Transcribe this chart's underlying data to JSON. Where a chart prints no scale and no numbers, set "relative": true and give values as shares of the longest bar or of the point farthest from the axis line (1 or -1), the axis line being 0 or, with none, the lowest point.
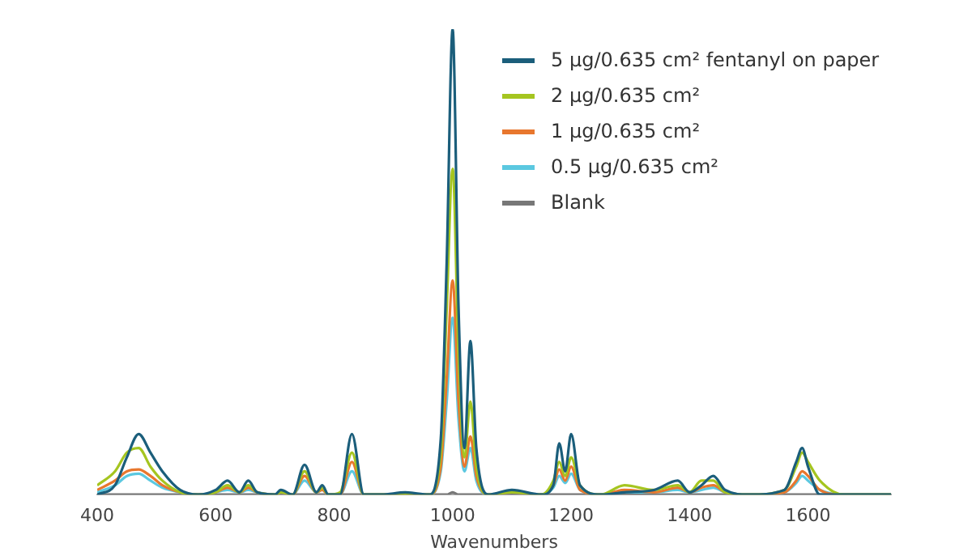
{
  "chart_data": {
    "type": "line",
    "relative": true,
    "xlabel": "Wavenumbers",
    "xlim": [
      400,
      1740
    ],
    "xticks": [
      400,
      600,
      800,
      1000,
      1200,
      1400,
      1600
    ],
    "grid": false,
    "legend": "top right",
    "marker": "none",
    "line_style": "solid",
    "x": [
      400,
      430,
      450,
      470,
      490,
      510,
      540,
      570,
      600,
      620,
      640,
      655,
      670,
      700,
      710,
      730,
      750,
      770,
      780,
      790,
      810,
      830,
      850,
      880,
      920,
      960,
      980,
      990,
      1000,
      1010,
      1020,
      1030,
      1040,
      1060,
      1100,
      1150,
      1170,
      1180,
      1190,
      1200,
      1215,
      1250,
      1290,
      1340,
      1380,
      1400,
      1420,
      1440,
      1460,
      1500,
      1560,
      1580,
      1590,
      1600,
      1620,
      1660,
      1740
    ],
    "series": [
      {
        "name": "5 µg/0.635 cm² fentanyl on paper",
        "color": "#1b5e7b",
        "values": [
          0,
          0.02,
          0.08,
          0.13,
          0.09,
          0.05,
          0.01,
          0,
          0.01,
          0.03,
          0.005,
          0.03,
          0.005,
          0,
          0.01,
          0,
          0.064,
          0.005,
          0.02,
          0,
          0,
          0.13,
          0,
          0,
          0.005,
          0,
          0.12,
          0.5,
          1,
          0.4,
          0.1,
          0.33,
          0.1,
          0,
          0.01,
          0,
          0.02,
          0.11,
          0.05,
          0.13,
          0.02,
          0,
          0.005,
          0.01,
          0.03,
          0.005,
          0.02,
          0.04,
          0.01,
          0,
          0.01,
          0.07,
          0.1,
          0.06,
          0,
          0,
          0
        ]
      },
      {
        "name": "2 µg/0.635 cm²",
        "color": "#a5c520",
        "values": [
          0.02,
          0.05,
          0.09,
          0.1,
          0.06,
          0.03,
          0.005,
          0,
          0.005,
          0.02,
          0.005,
          0.02,
          0.005,
          0,
          0.005,
          0,
          0.05,
          0.005,
          0.015,
          0,
          0.005,
          0.09,
          0,
          0,
          0,
          0,
          0.09,
          0.4,
          0.7,
          0.3,
          0.08,
          0.2,
          0.06,
          0,
          0.005,
          0,
          0.03,
          0.07,
          0.04,
          0.08,
          0.02,
          0,
          0.02,
          0.01,
          0.02,
          0.005,
          0.03,
          0.03,
          0.005,
          0,
          0.01,
          0.06,
          0.09,
          0.07,
          0.03,
          0,
          0
        ]
      },
      {
        "name": "1 µg/0.635 cm²",
        "color": "#e8772e",
        "values": [
          0.01,
          0.03,
          0.05,
          0.054,
          0.04,
          0.02,
          0.005,
          0,
          0.005,
          0.015,
          0.005,
          0.015,
          0.005,
          0,
          0.005,
          0,
          0.04,
          0.005,
          0.01,
          0,
          0,
          0.07,
          0,
          0,
          0,
          0,
          0.06,
          0.25,
          0.46,
          0.2,
          0.06,
          0.125,
          0.04,
          0,
          0.005,
          0,
          0.02,
          0.054,
          0.03,
          0.06,
          0.01,
          0,
          0.01,
          0.005,
          0.015,
          0.005,
          0.015,
          0.02,
          0.005,
          0,
          0.005,
          0.03,
          0.05,
          0.04,
          0.01,
          0,
          0
        ]
      },
      {
        "name": "0.5 µg/0.635 cm²",
        "color": "#5bc8e0",
        "values": [
          0.005,
          0.02,
          0.04,
          0.045,
          0.03,
          0.015,
          0.005,
          0,
          0.005,
          0.01,
          0.005,
          0.01,
          0.005,
          0,
          0.005,
          0,
          0.03,
          0.005,
          0.01,
          0,
          0,
          0.05,
          0,
          0,
          0,
          0,
          0.05,
          0.2,
          0.38,
          0.16,
          0.05,
          0.1,
          0.03,
          0,
          0.005,
          0,
          0.015,
          0.04,
          0.025,
          0.045,
          0.01,
          0,
          0.005,
          0.005,
          0.01,
          0.005,
          0.01,
          0.015,
          0.005,
          0,
          0.005,
          0.025,
          0.04,
          0.03,
          0.01,
          0,
          0
        ]
      },
      {
        "name": "Blank",
        "color": "#777777",
        "values": [
          0,
          0,
          0,
          0,
          0,
          0,
          0,
          0,
          0,
          0,
          0,
          0,
          0,
          0,
          0,
          0,
          0,
          0,
          0,
          0,
          0,
          0,
          0,
          0,
          0,
          0,
          0,
          0,
          0.005,
          0,
          0,
          0,
          0,
          0,
          0,
          0,
          0,
          0,
          0,
          0,
          0,
          0,
          0,
          0,
          0,
          0,
          0,
          0,
          0,
          0,
          0,
          0,
          0,
          0,
          0,
          0,
          0
        ]
      }
    ]
  }
}
